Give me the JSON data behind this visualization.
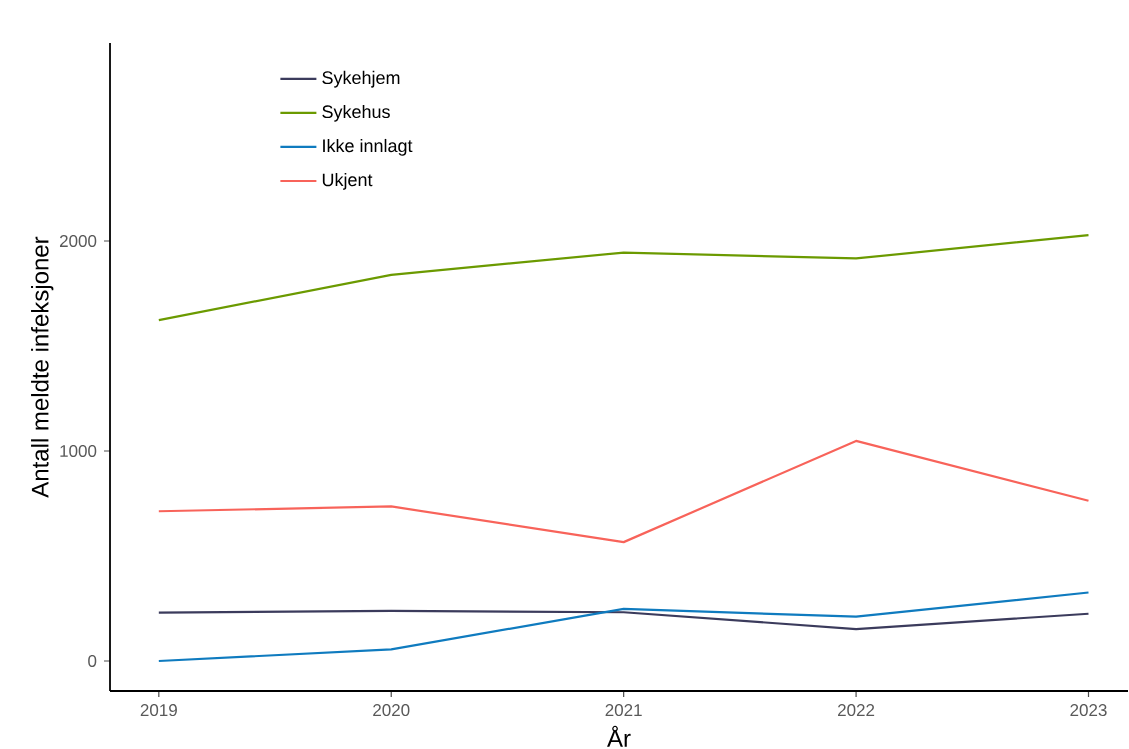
{
  "chart_data": {
    "type": "line",
    "xlabel": "År",
    "ylabel": "Antall meldte infeksjoner",
    "x": [
      2019,
      2020,
      2021,
      2022,
      2023
    ],
    "series": [
      {
        "name": "Sykehjem",
        "color": "#3b3b5c",
        "values": [
          230,
          239,
          232,
          152,
          225
        ]
      },
      {
        "name": "Sykehus",
        "color": "#6b9a00",
        "values": [
          1623,
          1839,
          1945,
          1917,
          2028
        ]
      },
      {
        "name": "Ikke innlagt",
        "color": "#0f7bbf",
        "values": [
          0,
          55,
          248,
          211,
          326
        ]
      },
      {
        "name": "Ukjent",
        "color": "#f8635a",
        "values": [
          713,
          736,
          566,
          1048,
          763
        ]
      }
    ],
    "xlim": [
      2018.79,
      2023.17
    ],
    "ylim": [
      -143,
      2943
    ],
    "xticks": [
      2019,
      2020,
      2021,
      2022,
      2023
    ],
    "yticks": [
      0,
      1000,
      2000
    ],
    "grid": false,
    "legend": "top left",
    "marker": "none",
    "line_style": "solid"
  }
}
